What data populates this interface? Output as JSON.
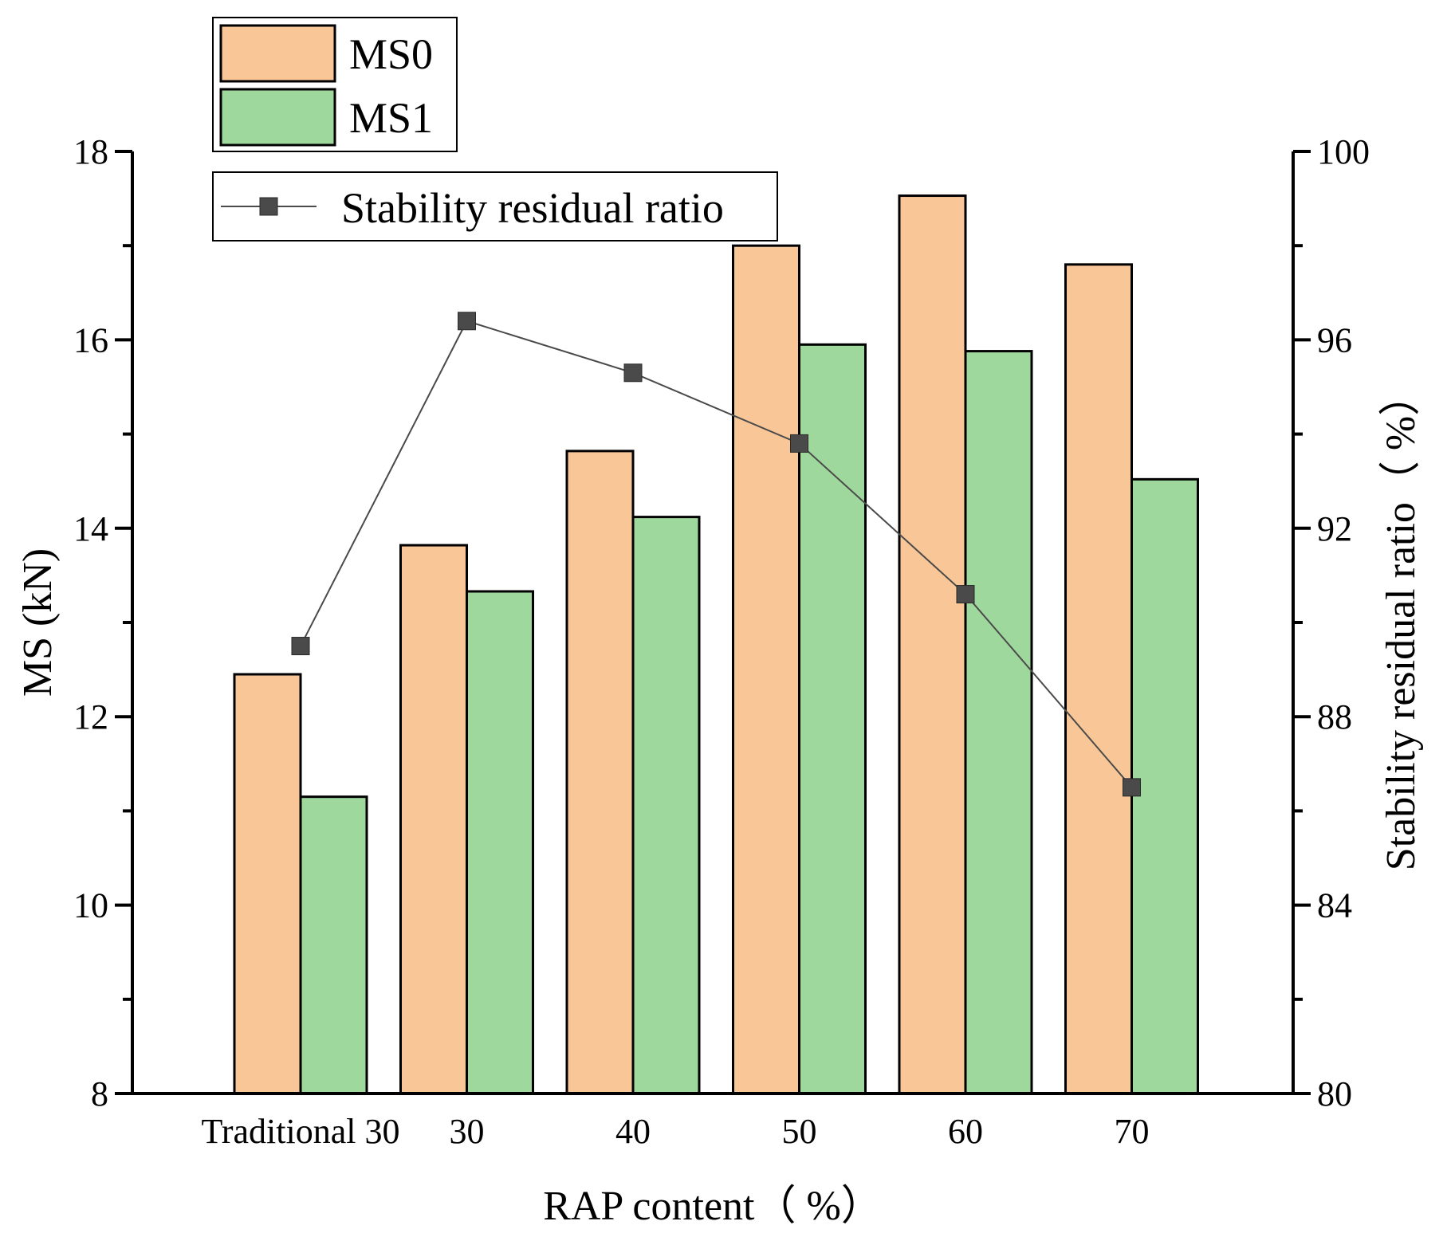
{
  "chart_data": {
    "type": "bar",
    "categories": [
      "Traditional 30",
      "30",
      "40",
      "50",
      "60",
      "70"
    ],
    "series": [
      {
        "name": "MS0",
        "type": "bar",
        "axis": "left",
        "color": "#f9c797",
        "values": [
          12.45,
          13.82,
          14.82,
          17.0,
          17.53,
          16.8
        ]
      },
      {
        "name": "MS1",
        "type": "bar",
        "axis": "left",
        "color": "#9fd89d",
        "values": [
          11.15,
          13.33,
          14.12,
          15.95,
          15.88,
          14.52
        ]
      },
      {
        "name": "Stability residual ratio",
        "type": "line",
        "axis": "right",
        "color": "#4a4a4a",
        "values": [
          89.5,
          96.4,
          95.3,
          93.8,
          90.6,
          86.5
        ]
      }
    ],
    "xlabel": "RAP content（ %）",
    "ylabel": "MS (kN)",
    "y2label": "Stability residual ratio（ %）",
    "ylim": [
      8,
      18
    ],
    "y2lim": [
      80,
      100
    ],
    "yticks": [
      "8",
      "10",
      "12",
      "14",
      "16",
      "18"
    ],
    "y2ticks": [
      "80",
      "84",
      "88",
      "92",
      "96",
      "100"
    ],
    "grid": false,
    "legend_placement": "top-left"
  }
}
